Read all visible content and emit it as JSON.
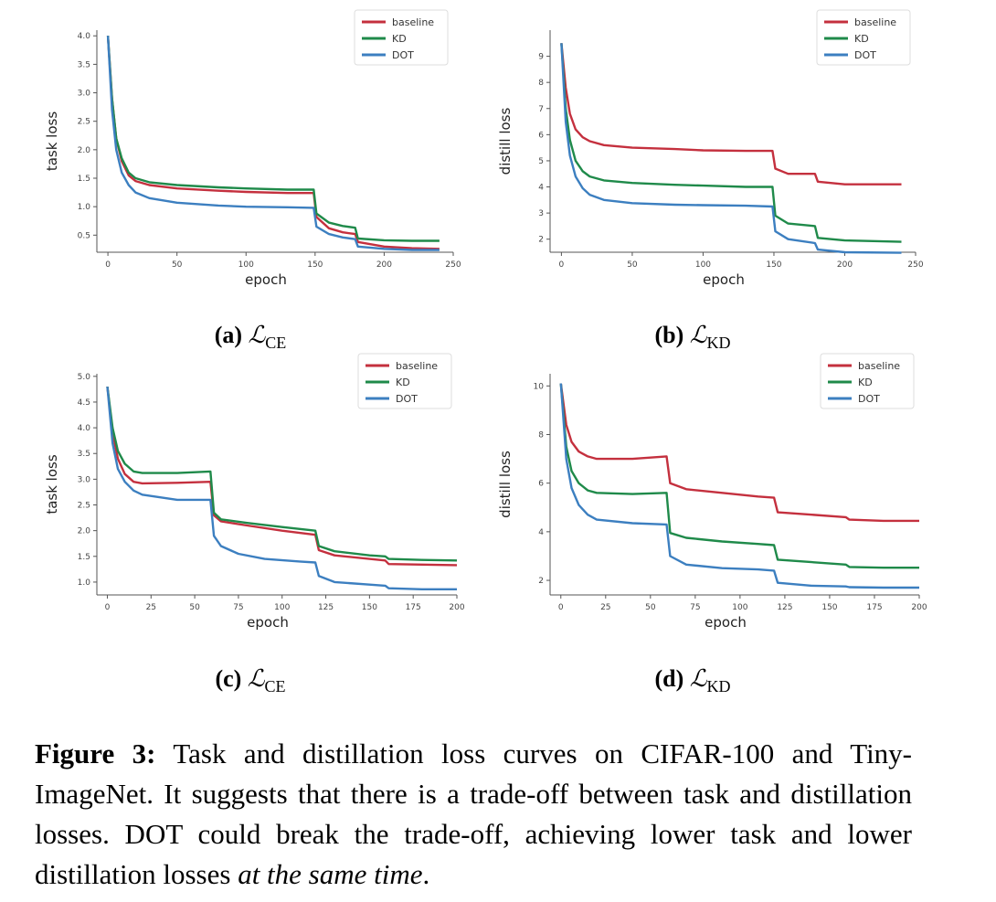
{
  "colors": {
    "baseline": "#c4303e",
    "KD": "#1f8a4a",
    "DOT": "#3c7fc0"
  },
  "legend": [
    "baseline",
    "KD",
    "DOT"
  ],
  "subcaptions": [
    {
      "label": "(a)",
      "symbol": "ℒ",
      "sub": "CE"
    },
    {
      "label": "(b)",
      "symbol": "ℒ",
      "sub": "KD"
    },
    {
      "label": "(c)",
      "symbol": "ℒ",
      "sub": "CE"
    },
    {
      "label": "(d)",
      "symbol": "ℒ",
      "sub": "KD"
    }
  ],
  "caption": {
    "label": "Figure 3:",
    "text": "Task and distillation loss curves on CIFAR-100 and Tiny-ImageNet. It suggests that there is a trade-off between task and distillation losses. DOT could break the trade-off, achieving lower task and lower distillation losses",
    "emph": "at the same time",
    "end": "."
  },
  "chart_data": [
    {
      "type": "line",
      "xlabel": "epoch",
      "ylabel": "task loss",
      "xlim": [
        -8,
        250
      ],
      "ylim": [
        0.2,
        4.1
      ],
      "xticks": [
        0,
        50,
        100,
        150,
        200,
        250
      ],
      "yticks": [
        0.5,
        1.0,
        1.5,
        2.0,
        2.5,
        3.0,
        3.5,
        4.0
      ],
      "legend_position": "top-right",
      "grid": false,
      "series": [
        {
          "name": "baseline",
          "points": [
            [
              0,
              4.0
            ],
            [
              3,
              2.9
            ],
            [
              6,
              2.2
            ],
            [
              10,
              1.8
            ],
            [
              15,
              1.55
            ],
            [
              20,
              1.45
            ],
            [
              30,
              1.38
            ],
            [
              50,
              1.32
            ],
            [
              80,
              1.28
            ],
            [
              100,
              1.26
            ],
            [
              130,
              1.24
            ],
            [
              149,
              1.24
            ],
            [
              151,
              0.82
            ],
            [
              160,
              0.62
            ],
            [
              170,
              0.55
            ],
            [
              179,
              0.52
            ],
            [
              181,
              0.38
            ],
            [
              200,
              0.3
            ],
            [
              220,
              0.27
            ],
            [
              240,
              0.26
            ]
          ]
        },
        {
          "name": "KD",
          "points": [
            [
              0,
              4.0
            ],
            [
              3,
              2.9
            ],
            [
              6,
              2.2
            ],
            [
              10,
              1.85
            ],
            [
              15,
              1.6
            ],
            [
              20,
              1.5
            ],
            [
              30,
              1.43
            ],
            [
              50,
              1.38
            ],
            [
              80,
              1.34
            ],
            [
              100,
              1.32
            ],
            [
              130,
              1.3
            ],
            [
              149,
              1.3
            ],
            [
              151,
              0.88
            ],
            [
              160,
              0.72
            ],
            [
              170,
              0.66
            ],
            [
              179,
              0.63
            ],
            [
              181,
              0.44
            ],
            [
              200,
              0.41
            ],
            [
              220,
              0.4
            ],
            [
              240,
              0.4
            ]
          ]
        },
        {
          "name": "DOT",
          "points": [
            [
              0,
              4.0
            ],
            [
              3,
              2.7
            ],
            [
              6,
              2.0
            ],
            [
              10,
              1.6
            ],
            [
              15,
              1.38
            ],
            [
              20,
              1.25
            ],
            [
              30,
              1.15
            ],
            [
              50,
              1.07
            ],
            [
              80,
              1.02
            ],
            [
              100,
              1.0
            ],
            [
              130,
              0.99
            ],
            [
              149,
              0.98
            ],
            [
              151,
              0.65
            ],
            [
              160,
              0.52
            ],
            [
              170,
              0.46
            ],
            [
              179,
              0.43
            ],
            [
              181,
              0.3
            ],
            [
              200,
              0.26
            ],
            [
              220,
              0.24
            ],
            [
              240,
              0.24
            ]
          ]
        }
      ]
    },
    {
      "type": "line",
      "xlabel": "epoch",
      "ylabel": "distill loss",
      "xlim": [
        -8,
        250
      ],
      "ylim": [
        1.5,
        10
      ],
      "xticks": [
        0,
        50,
        100,
        150,
        200,
        250
      ],
      "yticks": [
        2,
        3,
        4,
        5,
        6,
        7,
        8,
        9
      ],
      "legend_position": "top-right",
      "grid": false,
      "series": [
        {
          "name": "baseline",
          "points": [
            [
              0,
              9.5
            ],
            [
              3,
              7.8
            ],
            [
              6,
              6.8
            ],
            [
              10,
              6.2
            ],
            [
              15,
              5.9
            ],
            [
              20,
              5.75
            ],
            [
              30,
              5.6
            ],
            [
              50,
              5.5
            ],
            [
              80,
              5.45
            ],
            [
              100,
              5.4
            ],
            [
              130,
              5.38
            ],
            [
              149,
              5.38
            ],
            [
              151,
              4.7
            ],
            [
              160,
              4.5
            ],
            [
              179,
              4.5
            ],
            [
              181,
              4.2
            ],
            [
              200,
              4.1
            ],
            [
              240,
              4.1
            ]
          ]
        },
        {
          "name": "KD",
          "points": [
            [
              0,
              9.5
            ],
            [
              3,
              7.0
            ],
            [
              6,
              5.8
            ],
            [
              10,
              5.0
            ],
            [
              15,
              4.6
            ],
            [
              20,
              4.4
            ],
            [
              30,
              4.25
            ],
            [
              50,
              4.15
            ],
            [
              80,
              4.08
            ],
            [
              100,
              4.05
            ],
            [
              130,
              4.0
            ],
            [
              149,
              4.0
            ],
            [
              151,
              2.9
            ],
            [
              160,
              2.6
            ],
            [
              179,
              2.5
            ],
            [
              181,
              2.05
            ],
            [
              200,
              1.95
            ],
            [
              240,
              1.9
            ]
          ]
        },
        {
          "name": "DOT",
          "points": [
            [
              0,
              9.5
            ],
            [
              3,
              6.5
            ],
            [
              6,
              5.2
            ],
            [
              10,
              4.4
            ],
            [
              15,
              3.95
            ],
            [
              20,
              3.7
            ],
            [
              30,
              3.5
            ],
            [
              50,
              3.38
            ],
            [
              80,
              3.32
            ],
            [
              100,
              3.3
            ],
            [
              130,
              3.28
            ],
            [
              149,
              3.25
            ],
            [
              151,
              2.3
            ],
            [
              160,
              2.0
            ],
            [
              179,
              1.85
            ],
            [
              181,
              1.6
            ],
            [
              200,
              1.5
            ],
            [
              240,
              1.48
            ]
          ]
        }
      ]
    },
    {
      "type": "line",
      "xlabel": "epoch",
      "ylabel": "task loss",
      "xlim": [
        -6,
        200
      ],
      "ylim": [
        0.75,
        5.05
      ],
      "xticks": [
        0,
        25,
        50,
        75,
        100,
        125,
        150,
        175,
        200
      ],
      "yticks": [
        1.0,
        1.5,
        2.0,
        2.5,
        3.0,
        3.5,
        4.0,
        4.5,
        5.0
      ],
      "legend_position": "top-right",
      "grid": false,
      "series": [
        {
          "name": "baseline",
          "points": [
            [
              0,
              4.8
            ],
            [
              3,
              3.9
            ],
            [
              6,
              3.4
            ],
            [
              10,
              3.1
            ],
            [
              15,
              2.95
            ],
            [
              20,
              2.92
            ],
            [
              40,
              2.93
            ],
            [
              59,
              2.95
            ],
            [
              61,
              2.3
            ],
            [
              65,
              2.18
            ],
            [
              80,
              2.1
            ],
            [
              100,
              2.0
            ],
            [
              119,
              1.92
            ],
            [
              121,
              1.62
            ],
            [
              130,
              1.52
            ],
            [
              150,
              1.45
            ],
            [
              159,
              1.42
            ],
            [
              161,
              1.35
            ],
            [
              180,
              1.34
            ],
            [
              200,
              1.33
            ]
          ]
        },
        {
          "name": "KD",
          "points": [
            [
              0,
              4.8
            ],
            [
              3,
              4.0
            ],
            [
              6,
              3.55
            ],
            [
              10,
              3.3
            ],
            [
              15,
              3.15
            ],
            [
              20,
              3.12
            ],
            [
              40,
              3.12
            ],
            [
              59,
              3.15
            ],
            [
              61,
              2.35
            ],
            [
              65,
              2.22
            ],
            [
              80,
              2.15
            ],
            [
              100,
              2.07
            ],
            [
              119,
              2.0
            ],
            [
              121,
              1.7
            ],
            [
              130,
              1.6
            ],
            [
              150,
              1.52
            ],
            [
              159,
              1.5
            ],
            [
              161,
              1.45
            ],
            [
              180,
              1.43
            ],
            [
              200,
              1.42
            ]
          ]
        },
        {
          "name": "DOT",
          "points": [
            [
              0,
              4.8
            ],
            [
              3,
              3.7
            ],
            [
              6,
              3.2
            ],
            [
              10,
              2.95
            ],
            [
              15,
              2.78
            ],
            [
              20,
              2.7
            ],
            [
              40,
              2.6
            ],
            [
              59,
              2.6
            ],
            [
              61,
              1.9
            ],
            [
              65,
              1.7
            ],
            [
              75,
              1.55
            ],
            [
              90,
              1.45
            ],
            [
              110,
              1.4
            ],
            [
              119,
              1.38
            ],
            [
              121,
              1.12
            ],
            [
              130,
              1.0
            ],
            [
              150,
              0.95
            ],
            [
              159,
              0.93
            ],
            [
              161,
              0.88
            ],
            [
              180,
              0.86
            ],
            [
              200,
              0.86
            ]
          ]
        }
      ]
    },
    {
      "type": "line",
      "xlabel": "epoch",
      "ylabel": "distill loss",
      "xlim": [
        -6,
        200
      ],
      "ylim": [
        1.4,
        10.5
      ],
      "xticks": [
        0,
        25,
        50,
        75,
        100,
        125,
        150,
        175,
        200
      ],
      "yticks": [
        2,
        4,
        6,
        8,
        10
      ],
      "legend_position": "top-right",
      "grid": false,
      "series": [
        {
          "name": "baseline",
          "points": [
            [
              0,
              10.1
            ],
            [
              3,
              8.4
            ],
            [
              6,
              7.7
            ],
            [
              10,
              7.3
            ],
            [
              15,
              7.1
            ],
            [
              20,
              7.0
            ],
            [
              40,
              7.0
            ],
            [
              59,
              7.1
            ],
            [
              61,
              6.0
            ],
            [
              70,
              5.75
            ],
            [
              90,
              5.6
            ],
            [
              110,
              5.45
            ],
            [
              119,
              5.4
            ],
            [
              121,
              4.8
            ],
            [
              140,
              4.7
            ],
            [
              159,
              4.6
            ],
            [
              161,
              4.5
            ],
            [
              180,
              4.45
            ],
            [
              200,
              4.45
            ]
          ]
        },
        {
          "name": "KD",
          "points": [
            [
              0,
              10.1
            ],
            [
              3,
              7.5
            ],
            [
              6,
              6.5
            ],
            [
              10,
              6.0
            ],
            [
              15,
              5.7
            ],
            [
              20,
              5.6
            ],
            [
              40,
              5.55
            ],
            [
              59,
              5.6
            ],
            [
              61,
              3.95
            ],
            [
              70,
              3.75
            ],
            [
              90,
              3.6
            ],
            [
              110,
              3.5
            ],
            [
              119,
              3.45
            ],
            [
              121,
              2.85
            ],
            [
              140,
              2.75
            ],
            [
              159,
              2.65
            ],
            [
              161,
              2.55
            ],
            [
              180,
              2.52
            ],
            [
              200,
              2.52
            ]
          ]
        },
        {
          "name": "DOT",
          "points": [
            [
              0,
              10.1
            ],
            [
              3,
              7.0
            ],
            [
              6,
              5.8
            ],
            [
              10,
              5.1
            ],
            [
              15,
              4.7
            ],
            [
              20,
              4.5
            ],
            [
              40,
              4.35
            ],
            [
              59,
              4.3
            ],
            [
              61,
              3.0
            ],
            [
              70,
              2.65
            ],
            [
              90,
              2.5
            ],
            [
              110,
              2.45
            ],
            [
              119,
              2.4
            ],
            [
              121,
              1.9
            ],
            [
              140,
              1.78
            ],
            [
              159,
              1.75
            ],
            [
              161,
              1.72
            ],
            [
              180,
              1.7
            ],
            [
              200,
              1.7
            ]
          ]
        }
      ]
    }
  ]
}
